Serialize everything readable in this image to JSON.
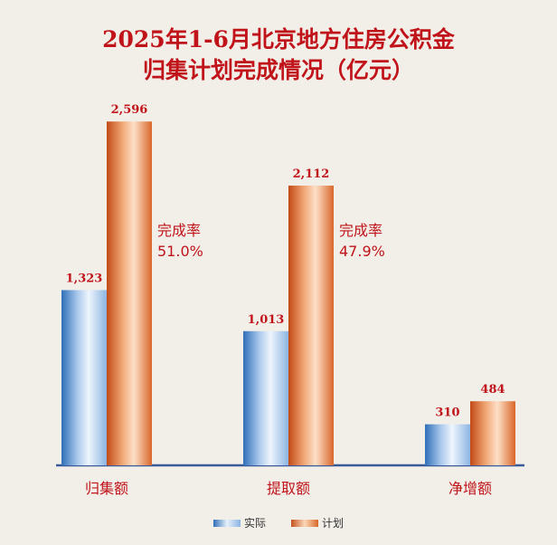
{
  "title_line1": "2025年1-6月北京地方住房公积金",
  "title_line2": "归集计划完成情况（亿元）",
  "chart_data": {
    "type": "bar",
    "categories": [
      "归集额",
      "提取额",
      "净增额"
    ],
    "series": [
      {
        "name": "实际",
        "values": [
          1323,
          1013,
          310
        ]
      },
      {
        "name": "计划",
        "values": [
          2596,
          2112,
          484
        ]
      }
    ],
    "value_labels": {
      "实际": [
        "1,323",
        "1,013",
        "310"
      ],
      "计划": [
        "2,596",
        "2,112",
        "484"
      ]
    },
    "annotations": [
      {
        "category": "归集额",
        "label": "完成率",
        "value": "51.0%"
      },
      {
        "category": "提取额",
        "label": "完成率",
        "value": "47.9%"
      }
    ],
    "colors": {
      "实际": "#5b8fcf",
      "计划": "#e07b3d",
      "axis": "#3a5a9a",
      "label": "#c0141a"
    },
    "ylim": [
      0,
      2700
    ],
    "legend_position": "bottom"
  }
}
